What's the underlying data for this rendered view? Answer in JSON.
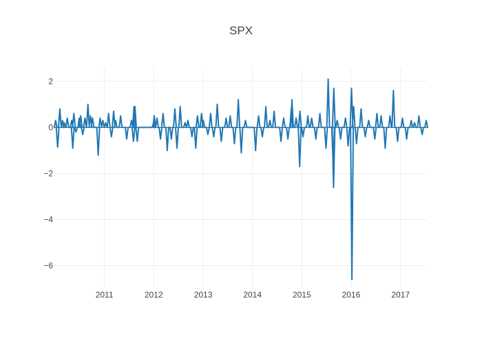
{
  "chart_data": {
    "type": "line",
    "title": "SPX",
    "xlabel": "",
    "ylabel": "",
    "x_range": [
      "2010-01-01",
      "2017-07-15"
    ],
    "ylim": [
      -7.0,
      2.55
    ],
    "x_ticks": [
      "2011",
      "2012",
      "2013",
      "2014",
      "2015",
      "2016",
      "2017"
    ],
    "y_ticks": [
      2,
      0,
      -2,
      -4,
      -6
    ],
    "y_tick_labels": [
      "2",
      "0",
      "−2",
      "−4",
      "−6"
    ],
    "grid": true,
    "legend": "none",
    "series_color": "#1f77b4",
    "series": [
      {
        "x": [
          "2010-01-05",
          "2010-01-20",
          "2010-02-05",
          "2010-02-25",
          "2010-03-10",
          "2010-04-01",
          "2010-05-04",
          "2010-05-12",
          "2010-05-20",
          "2010-06-05",
          "2010-06-29",
          "2010-07-10",
          "2010-07-25",
          "2010-08-10",
          "2010-09-01",
          "2010-09-20",
          "2010-10-05",
          "2010-11-16",
          "2010-12-01",
          "2010-12-20",
          "2011-01-10",
          "2011-02-01",
          "2011-02-22",
          "2011-03-10",
          "2011-03-25",
          "2011-05-01",
          "2011-06-15",
          "2011-07-20",
          "2011-08-04",
          "2011-08-08",
          "2011-08-15",
          "2011-09-01",
          "2011-12-31",
          "2012-01-05",
          "2012-01-25",
          "2012-02-20",
          "2012-03-10",
          "2012-04-10",
          "2012-05-10",
          "2012-06-06",
          "2012-06-21",
          "2012-07-15",
          "2012-08-20",
          "2012-09-10",
          "2012-10-10",
          "2012-11-07",
          "2012-11-20",
          "2012-12-20",
          "2013-01-02",
          "2013-02-05",
          "2013-02-25",
          "2013-03-20",
          "2013-04-15",
          "2013-05-15",
          "2013-06-20",
          "2013-07-20",
          "2013-08-20",
          "2013-09-18",
          "2013-10-10",
          "2013-11-10",
          "2014-01-24",
          "2014-02-15",
          "2014-03-15",
          "2014-04-10",
          "2014-05-10",
          "2014-06-10",
          "2014-07-31",
          "2014-08-20",
          "2014-09-20",
          "2014-10-15",
          "2014-10-20",
          "2014-11-20",
          "2014-12-16",
          "2014-12-18",
          "2015-01-10",
          "2015-02-15",
          "2015-03-15",
          "2015-04-15",
          "2015-05-15",
          "2015-06-29",
          "2015-07-15",
          "2015-08-21",
          "2015-08-24",
          "2015-08-26",
          "2015-09-20",
          "2015-10-15",
          "2015-11-20",
          "2015-12-10",
          "2016-01-04",
          "2016-01-07",
          "2016-01-20",
          "2016-02-10",
          "2016-03-15",
          "2016-04-15",
          "2016-05-10",
          "2016-06-24",
          "2016-07-10",
          "2016-08-10",
          "2016-09-09",
          "2016-10-15",
          "2016-11-09",
          "2016-12-10",
          "2017-01-15",
          "2017-02-15",
          "2017-03-21",
          "2017-04-15",
          "2017-05-17",
          "2017-06-10",
          "2017-07-10"
        ],
        "y": [
          0.3,
          -0.85,
          0.8,
          0.3,
          0.2,
          0.4,
          0.3,
          -0.9,
          0.6,
          -0.2,
          0.4,
          0.5,
          -0.3,
          0.4,
          1.0,
          0.5,
          0.4,
          -1.2,
          0.4,
          0.3,
          0.2,
          0.6,
          -0.4,
          0.7,
          0.3,
          0.5,
          -0.5,
          0.3,
          -0.6,
          0.9,
          0.9,
          -0.6,
          0.2,
          0.5,
          0.4,
          -0.5,
          0.6,
          -1.0,
          -0.5,
          0.8,
          -0.9,
          0.9,
          0.2,
          0.3,
          -0.4,
          -0.9,
          0.5,
          0.6,
          0.3,
          -0.3,
          0.6,
          -0.4,
          1.0,
          -0.6,
          0.4,
          0.5,
          -0.7,
          1.2,
          -1.1,
          0.3,
          -1.0,
          0.5,
          -0.4,
          0.9,
          0.3,
          0.7,
          -0.6,
          0.4,
          -0.5,
          0.8,
          1.2,
          0.4,
          -1.7,
          0.7,
          -0.4,
          0.5,
          0.4,
          -0.5,
          0.6,
          -0.9,
          2.1,
          -1.6,
          -2.6,
          1.7,
          0.3,
          -0.5,
          0.4,
          -0.8,
          1.7,
          -6.6,
          0.9,
          -0.7,
          0.8,
          -0.4,
          0.3,
          -0.5,
          0.6,
          0.5,
          -0.9,
          0.5,
          1.6,
          -0.6,
          0.4,
          -0.5,
          0.3,
          0.2,
          0.5,
          -0.3,
          0.3
        ]
      }
    ]
  }
}
